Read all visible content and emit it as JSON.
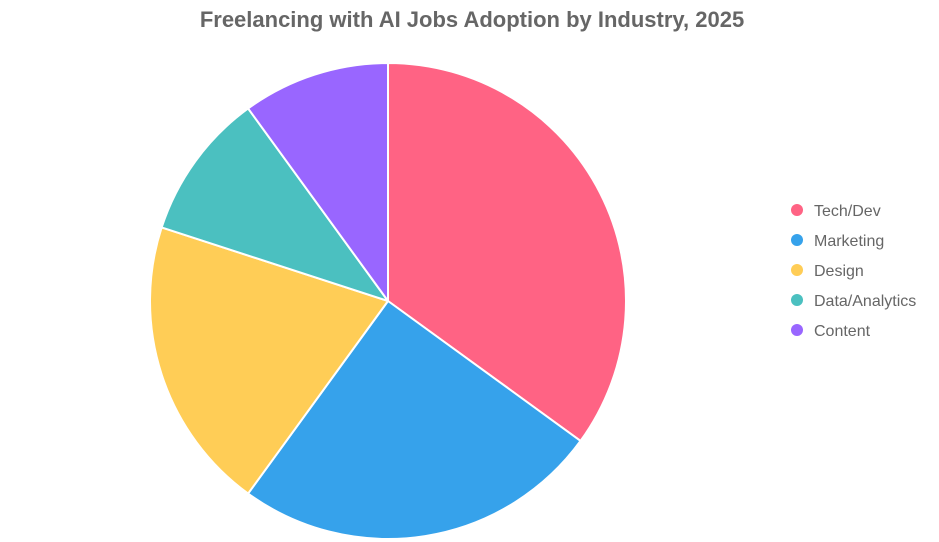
{
  "chart_data": {
    "type": "pie",
    "title": "Freelancing with AI Jobs Adoption by Industry, 2025",
    "categories": [
      "Tech/Dev",
      "Marketing",
      "Design",
      "Data/Analytics",
      "Content"
    ],
    "values": [
      35,
      25,
      20,
      10,
      10
    ],
    "colors": [
      "#ff6384",
      "#36a2eb",
      "#ffcd56",
      "#4bc0c0",
      "#9966ff"
    ],
    "legend_position": "right",
    "start_angle": "top",
    "direction": "clockwise"
  }
}
